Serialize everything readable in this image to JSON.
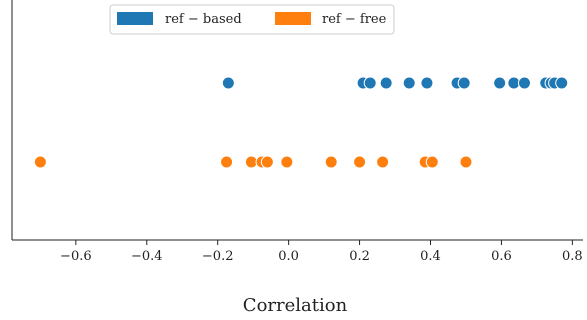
{
  "chart_data": {
    "type": "scatter",
    "xlabel": "Correlation",
    "xlim": [
      -0.78,
      0.83
    ],
    "x_ticks": [
      -0.6,
      -0.4,
      -0.2,
      0.0,
      0.2,
      0.4,
      0.6,
      0.8
    ],
    "x_tick_labels": [
      "−0.6",
      "−0.4",
      "−0.2",
      "0.0",
      "0.2",
      "0.4",
      "0.6",
      "0.8"
    ],
    "grid": false,
    "legend_position": "top-center",
    "series": [
      {
        "name": "ref − based",
        "color": "#1f77b4",
        "x": [
          -0.17,
          0.21,
          0.23,
          0.275,
          0.34,
          0.39,
          0.475,
          0.495,
          0.595,
          0.635,
          0.665,
          0.725,
          0.74,
          0.75,
          0.77
        ]
      },
      {
        "name": "ref − free",
        "color": "#ff7f0e",
        "x": [
          -0.7,
          -0.175,
          -0.105,
          -0.075,
          -0.06,
          -0.005,
          0.12,
          0.2,
          0.265,
          0.385,
          0.405,
          0.5
        ]
      }
    ]
  }
}
